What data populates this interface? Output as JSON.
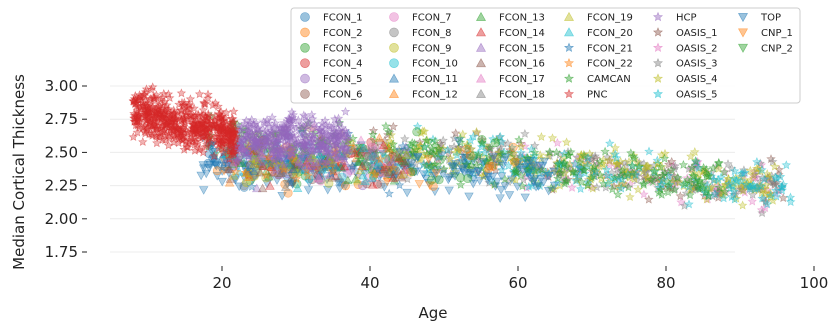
{
  "chart_data": {
    "type": "scatter",
    "xlabel": "Age",
    "ylabel": "Median Cortical Thickness",
    "xlim": [
      0,
      100
    ],
    "ylim": [
      1.62,
      3.1
    ],
    "x_ticks": [
      20,
      40,
      60,
      80,
      100
    ],
    "y_ticks": [
      1.75,
      2.0,
      2.25,
      2.5,
      2.75,
      3.0
    ],
    "x_tick_labels": [
      "20",
      "40",
      "60",
      "80",
      "100"
    ],
    "y_tick_labels": [
      "1.75",
      "2.00",
      "2.25",
      "2.50",
      "2.75",
      "3.00"
    ],
    "grid": true,
    "legend": {
      "placement": "top-right",
      "columns": 6
    },
    "series": [
      {
        "name": "FCON_1",
        "color": "#1f77b4",
        "marker": "circle",
        "age_range": [
          18,
          35
        ],
        "thickness_center": 2.45
      },
      {
        "name": "FCON_2",
        "color": "#ff7f0e",
        "marker": "circle",
        "age_range": [
          18,
          60
        ],
        "thickness_center": 2.4
      },
      {
        "name": "FCON_3",
        "color": "#2ca02c",
        "marker": "circle",
        "age_range": [
          20,
          60
        ],
        "thickness_center": 2.45
      },
      {
        "name": "FCON_4",
        "color": "#d62728",
        "marker": "circle",
        "age_range": [
          20,
          45
        ],
        "thickness_center": 2.45
      },
      {
        "name": "FCON_5",
        "color": "#9467bd",
        "marker": "circle",
        "age_range": [
          20,
          45
        ],
        "thickness_center": 2.45
      },
      {
        "name": "FCON_6",
        "color": "#8c564b",
        "marker": "circle",
        "age_range": [
          20,
          45
        ],
        "thickness_center": 2.4
      },
      {
        "name": "FCON_7",
        "color": "#e377c2",
        "marker": "circle",
        "age_range": [
          20,
          45
        ],
        "thickness_center": 2.45
      },
      {
        "name": "FCON_8",
        "color": "#7f7f7f",
        "marker": "circle",
        "age_range": [
          20,
          45
        ],
        "thickness_center": 2.4
      },
      {
        "name": "FCON_9",
        "color": "#bcbd22",
        "marker": "circle",
        "age_range": [
          20,
          45
        ],
        "thickness_center": 2.4
      },
      {
        "name": "FCON_10",
        "color": "#17becf",
        "marker": "circle",
        "age_range": [
          20,
          45
        ],
        "thickness_center": 2.4
      },
      {
        "name": "FCON_11",
        "color": "#1f77b4",
        "marker": "triangle-up",
        "age_range": [
          20,
          45
        ],
        "thickness_center": 2.4
      },
      {
        "name": "FCON_12",
        "color": "#ff7f0e",
        "marker": "triangle-up",
        "age_range": [
          20,
          45
        ],
        "thickness_center": 2.4
      },
      {
        "name": "FCON_13",
        "color": "#2ca02c",
        "marker": "triangle-up",
        "age_range": [
          20,
          45
        ],
        "thickness_center": 2.4
      },
      {
        "name": "FCON_14",
        "color": "#d62728",
        "marker": "triangle-up",
        "age_range": [
          20,
          45
        ],
        "thickness_center": 2.4
      },
      {
        "name": "FCON_15",
        "color": "#9467bd",
        "marker": "triangle-up",
        "age_range": [
          20,
          45
        ],
        "thickness_center": 2.45
      },
      {
        "name": "FCON_16",
        "color": "#8c564b",
        "marker": "triangle-up",
        "age_range": [
          20,
          45
        ],
        "thickness_center": 2.4
      },
      {
        "name": "FCON_17",
        "color": "#e377c2",
        "marker": "triangle-up",
        "age_range": [
          20,
          45
        ],
        "thickness_center": 2.45
      },
      {
        "name": "FCON_18",
        "color": "#7f7f7f",
        "marker": "triangle-up",
        "age_range": [
          20,
          45
        ],
        "thickness_center": 2.4
      },
      {
        "name": "FCON_19",
        "color": "#bcbd22",
        "marker": "triangle-up",
        "age_range": [
          20,
          45
        ],
        "thickness_center": 2.4
      },
      {
        "name": "FCON_20",
        "color": "#17becf",
        "marker": "triangle-up",
        "age_range": [
          20,
          45
        ],
        "thickness_center": 2.4
      },
      {
        "name": "FCON_21",
        "color": "#1f77b4",
        "marker": "star",
        "age_range": [
          20,
          45
        ],
        "thickness_center": 2.4
      },
      {
        "name": "FCON_22",
        "color": "#ff7f0e",
        "marker": "star",
        "age_range": [
          20,
          45
        ],
        "thickness_center": 2.4
      },
      {
        "name": "CAMCAN",
        "color": "#2ca02c",
        "marker": "star",
        "age_range": [
          18,
          88
        ],
        "thickness_center": 2.48
      },
      {
        "name": "PNC",
        "color": "#d62728",
        "marker": "star",
        "age_range": [
          8,
          22
        ],
        "thickness_center": 2.72
      },
      {
        "name": "HCP",
        "color": "#9467bd",
        "marker": "star",
        "age_range": [
          22,
          37
        ],
        "thickness_center": 2.6
      },
      {
        "name": "OASIS_1",
        "color": "#8c564b",
        "marker": "star",
        "age_range": [
          18,
          96
        ],
        "thickness_center": 2.3
      },
      {
        "name": "OASIS_2",
        "color": "#e377c2",
        "marker": "star",
        "age_range": [
          60,
          96
        ],
        "thickness_center": 2.2
      },
      {
        "name": "OASIS_3",
        "color": "#7f7f7f",
        "marker": "star",
        "age_range": [
          42,
          96
        ],
        "thickness_center": 2.25
      },
      {
        "name": "OASIS_4",
        "color": "#bcbd22",
        "marker": "star",
        "age_range": [
          42,
          95
        ],
        "thickness_center": 2.32
      },
      {
        "name": "OASIS_5",
        "color": "#17becf",
        "marker": "star",
        "age_range": [
          45,
          97
        ],
        "thickness_center": 2.3
      },
      {
        "name": "TOP",
        "color": "#1f77b4",
        "marker": "triangle-down",
        "age_range": [
          17,
          65
        ],
        "thickness_center": 2.32
      },
      {
        "name": "CNP_1",
        "color": "#ff7f0e",
        "marker": "triangle-down",
        "age_range": [
          20,
          50
        ],
        "thickness_center": 2.4
      },
      {
        "name": "CNP_2",
        "color": "#2ca02c",
        "marker": "triangle-down",
        "age_range": [
          20,
          50
        ],
        "thickness_center": 2.42
      }
    ]
  }
}
